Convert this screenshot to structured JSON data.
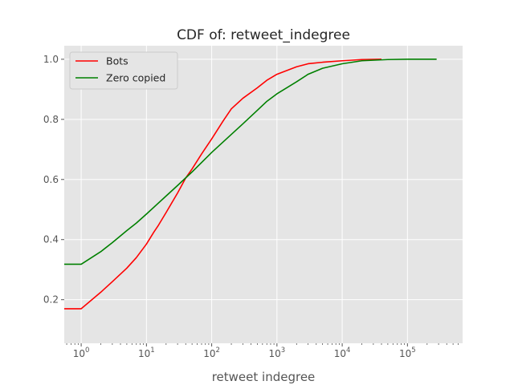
{
  "chart_data": {
    "type": "line",
    "title": "CDF of: retweet_indegree",
    "xlabel": "retweet indegree",
    "ylabel": "",
    "x_scale": "log",
    "xlim": [
      0.55,
      700000
    ],
    "ylim": [
      0.055,
      1.045
    ],
    "grid": true,
    "legend_position": "top-left",
    "x_ticks": [
      {
        "value": 1,
        "label": "10^0"
      },
      {
        "value": 10,
        "label": "10^1"
      },
      {
        "value": 100,
        "label": "10^2"
      },
      {
        "value": 1000,
        "label": "10^3"
      },
      {
        "value": 10000,
        "label": "10^4"
      },
      {
        "value": 100000,
        "label": "10^5"
      }
    ],
    "y_ticks": [
      0.2,
      0.4,
      0.6,
      0.8,
      1.0
    ],
    "y_tick_labels": [
      "0.2",
      "0.4",
      "0.6",
      "0.8",
      "1.0"
    ],
    "series": [
      {
        "name": "Bots",
        "color": "#ff0000",
        "x": [
          0.55,
          1,
          2,
          3,
          5,
          7,
          10,
          13,
          15,
          20,
          30,
          40,
          50,
          70,
          100,
          150,
          200,
          300,
          500,
          700,
          1000,
          2000,
          3000,
          5000,
          10000,
          20000,
          40000
        ],
        "y": [
          0.17,
          0.17,
          0.225,
          0.26,
          0.305,
          0.34,
          0.385,
          0.425,
          0.445,
          0.49,
          0.555,
          0.605,
          0.635,
          0.685,
          0.735,
          0.795,
          0.835,
          0.87,
          0.905,
          0.93,
          0.95,
          0.975,
          0.985,
          0.99,
          0.995,
          0.999,
          1.0
        ]
      },
      {
        "name": "Zero copied",
        "color": "#008000",
        "x": [
          0.55,
          1,
          2,
          3,
          5,
          7,
          10,
          20,
          30,
          50,
          100,
          200,
          300,
          500,
          700,
          1000,
          2000,
          3000,
          5000,
          10000,
          20000,
          50000,
          100000,
          280000
        ],
        "y": [
          0.318,
          0.318,
          0.36,
          0.39,
          0.43,
          0.455,
          0.485,
          0.545,
          0.58,
          0.625,
          0.69,
          0.75,
          0.785,
          0.83,
          0.86,
          0.885,
          0.925,
          0.95,
          0.97,
          0.985,
          0.995,
          0.999,
          1.0,
          1.0
        ]
      }
    ]
  }
}
